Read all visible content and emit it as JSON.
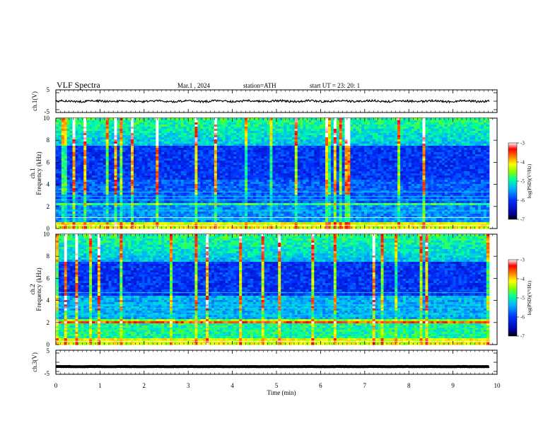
{
  "header": {
    "title": "VLF Spectra",
    "date": "Mar.1 , 2024",
    "station": "station=ATH",
    "start": "start UT = 23: 20: 1"
  },
  "chart_data": [
    {
      "type": "line",
      "name": "ch1-waveform",
      "ylabel": "ch.1(V)",
      "ylim": [
        -5,
        5
      ],
      "yticks": [
        "5",
        "-5"
      ],
      "xlim": [
        0,
        10
      ],
      "x_end": 9.82,
      "level": 0,
      "noise": 0.45
    },
    {
      "type": "heatmap",
      "name": "ch1-spectrogram",
      "ylabel": "ch.1\nFrequency (kHz)",
      "ylim": [
        0,
        10
      ],
      "yticks": [
        "0",
        "2",
        "4",
        "6",
        "8",
        "10"
      ],
      "xlim": [
        0,
        10
      ],
      "x_end": 9.82,
      "colorbar": {
        "label": "log(PSD)(V²/Hz)",
        "ticks": [
          "-3",
          "-4",
          "-5",
          "-6",
          "-7"
        ],
        "range": [
          -7,
          -3
        ]
      }
    },
    {
      "type": "heatmap",
      "name": "ch2-spectrogram",
      "ylabel": "ch.2\nFrequency (kHz)",
      "ylim": [
        0,
        10
      ],
      "yticks": [
        "0",
        "2",
        "4",
        "6",
        "8",
        "10"
      ],
      "xlim": [
        0,
        10
      ],
      "x_end": 9.82,
      "colorbar": {
        "label": "log(PSD)(V²/Hz)",
        "ticks": [
          "-3",
          "-4",
          "-5",
          "-6",
          "-7"
        ],
        "range": [
          -7,
          -3
        ]
      }
    },
    {
      "type": "line",
      "name": "ch3-waveform",
      "ylabel": "ch.3(V)",
      "ylim": [
        -5,
        5
      ],
      "yticks": [
        "5",
        "-5"
      ],
      "xlim": [
        0,
        10
      ],
      "x_end": 9.82,
      "level": -1.8,
      "noise": 0.05
    }
  ],
  "xaxis": {
    "label": "Time (min)",
    "ticks": [
      "0",
      "1",
      "2",
      "3",
      "4",
      "5",
      "6",
      "7",
      "8",
      "9",
      "10"
    ]
  },
  "colors": {
    "axis": "#000000",
    "colormap": [
      "#000000",
      "#0000a0",
      "#0030ff",
      "#00b0ff",
      "#00ffa0",
      "#7fff00",
      "#ffff00",
      "#ff8000",
      "#ff0000",
      "#ffffff"
    ]
  }
}
